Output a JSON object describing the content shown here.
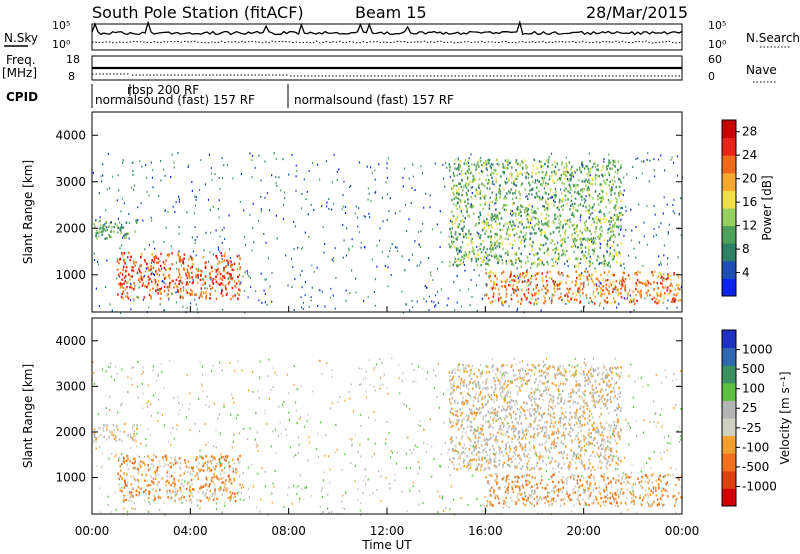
{
  "header": {
    "station": "South Pole Station (fitACF)",
    "beam": "Beam 15",
    "date": "28/Mar/2015"
  },
  "strip_labels": {
    "nsky": "N.Sky",
    "nsearch": "N.Search",
    "freq_line1": "Freq.",
    "freq_line2": "[MHz]",
    "nave": "Nave",
    "cpid": "CPID"
  },
  "noise_panel": {
    "left_ticks": [
      "10^5",
      "10^0"
    ],
    "right_ticks": [
      "10^5",
      "10^0"
    ]
  },
  "freq_panel": {
    "left_ticks": [
      "18",
      "8"
    ],
    "right_ticks": [
      "60",
      "0"
    ]
  },
  "cpid_modes": [
    {
      "label": "normalsound (fast) 157 RF",
      "start_hour": 0.0
    },
    {
      "label": "rbsp 200 RF",
      "start_hour": 2.0
    },
    {
      "label": "normalsound (fast) 157 RF",
      "start_hour": 8.0
    }
  ],
  "colors": {
    "power_scale": [
      "#0b24f0",
      "#1f4fb4",
      "#2e7f63",
      "#4ea05a",
      "#98d060",
      "#f0e048",
      "#f4a830",
      "#f06a1c",
      "#e8241c",
      "#c80000"
    ],
    "velocity_scale": [
      "#2030c0",
      "#3068b0",
      "#3c9060",
      "#5cc040",
      "#b4b4b4",
      "#d0d0c0",
      "#f4a030",
      "#f07020",
      "#e04010",
      "#d00000"
    ]
  },
  "chart_data": [
    {
      "type": "heatmap",
      "xlabel": "",
      "ylabel": "Slant Range [km]",
      "x_range_hours": [
        0,
        24
      ],
      "ylim": [
        200,
        4500
      ],
      "yticks": [
        "1000",
        "2000",
        "3000",
        "4000"
      ],
      "colorbar": {
        "label": "Power [dB]",
        "ticks": [
          "4",
          "8",
          "12",
          "16",
          "20",
          "24",
          "28"
        ],
        "range": [
          0,
          30
        ]
      },
      "description_regions": [
        {
          "t": [
            0.0,
            1.8
          ],
          "range_km": [
            1800,
            2200
          ],
          "value": 10
        },
        {
          "t": [
            1.0,
            6.0
          ],
          "range_km": [
            500,
            1500
          ],
          "value": 24
        },
        {
          "t": [
            14.5,
            21.5
          ],
          "range_km": [
            1200,
            3500
          ],
          "value": 12
        },
        {
          "t": [
            16.0,
            24.0
          ],
          "range_km": [
            400,
            1100
          ],
          "value": 22
        }
      ]
    },
    {
      "type": "heatmap",
      "xlabel": "Time UT",
      "ylabel": "Slant Range [km]",
      "x_range_hours": [
        0,
        24
      ],
      "ylim": [
        200,
        4500
      ],
      "yticks": [
        "1000",
        "2000",
        "3000",
        "4000"
      ],
      "xticks": [
        "00:00",
        "04:00",
        "08:00",
        "12:00",
        "16:00",
        "20:00",
        "00:00"
      ],
      "colorbar": {
        "label": "Velocity [m s^-1]",
        "ticks": [
          "1000",
          "500",
          "100",
          "25",
          "-25",
          "-100",
          "-500",
          "-1000"
        ],
        "range": [
          -1000,
          1000
        ]
      },
      "description_regions": [
        {
          "t": [
            0.0,
            1.8
          ],
          "range_km": [
            1800,
            2200
          ],
          "value": 0
        },
        {
          "t": [
            1.0,
            6.0
          ],
          "range_km": [
            500,
            1500
          ],
          "value": -300
        },
        {
          "t": [
            14.5,
            21.5
          ],
          "range_km": [
            1200,
            3500
          ],
          "value": 0
        },
        {
          "t": [
            16.0,
            24.0
          ],
          "range_km": [
            400,
            1100
          ],
          "value": -300
        }
      ]
    }
  ]
}
